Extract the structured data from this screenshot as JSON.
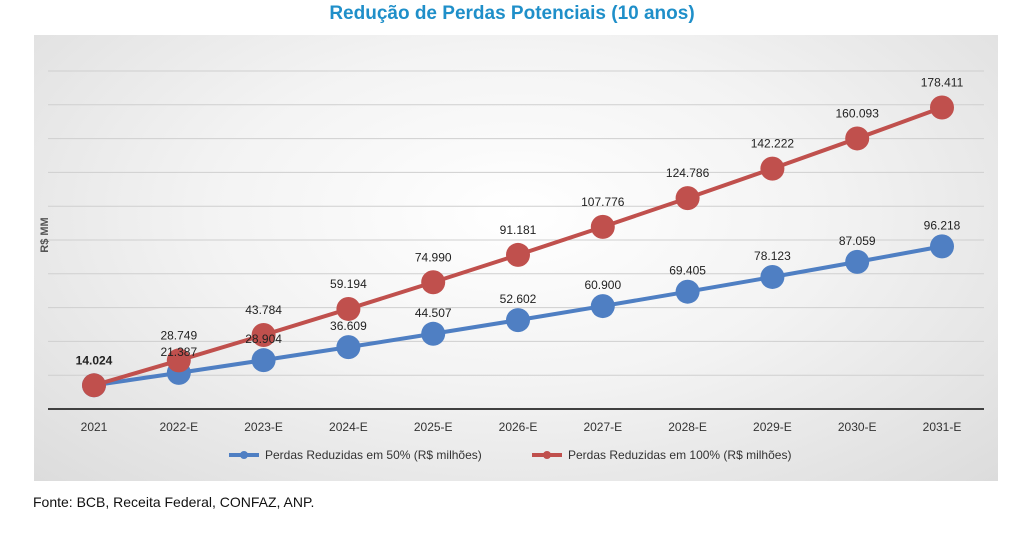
{
  "title": "Redução de Perdas Potenciais (10 anos)",
  "source": "Fonte: BCB, Receita Federal, CONFAZ, ANP.",
  "colors": {
    "title": "#1f8fc9",
    "series_50": "#4f7fc3",
    "series_100": "#c0504d",
    "gridline": "#cfcfcf",
    "axis": "#404040",
    "text": "#222222"
  },
  "chart_data": {
    "type": "line",
    "title": "Redução de Perdas Potenciais (10 anos)",
    "xlabel": "",
    "ylabel": "R$ MM",
    "ylim": [
      0,
      200000
    ],
    "grid": true,
    "legend_position": "bottom",
    "categories": [
      "2021",
      "2022-E",
      "2023-E",
      "2024-E",
      "2025-E",
      "2026-E",
      "2027-E",
      "2028-E",
      "2029-E",
      "2030-E",
      "2031-E"
    ],
    "series": [
      {
        "name": "Perdas Reduzidas em 50% (R$ milhões)",
        "color": "#4f7fc3",
        "values": [
          14024,
          21387,
          28904,
          36609,
          44507,
          52602,
          60900,
          69405,
          78123,
          87059,
          96218
        ],
        "labels": [
          "",
          "21.387",
          "28.904",
          "36.609",
          "44.507",
          "52.602",
          "60.900",
          "69.405",
          "78.123",
          "87.059",
          "96.218"
        ]
      },
      {
        "name": "Perdas Reduzidas em 100% (R$ milhões)",
        "color": "#c0504d",
        "values": [
          14024,
          28749,
          43784,
          59194,
          74990,
          91181,
          107776,
          124786,
          142222,
          160093,
          178411
        ],
        "labels": [
          "14.024",
          "28.749",
          "43.784",
          "59.194",
          "74.990",
          "91.181",
          "107.776",
          "124.786",
          "142.222",
          "160.093",
          "178.411"
        ]
      }
    ]
  }
}
